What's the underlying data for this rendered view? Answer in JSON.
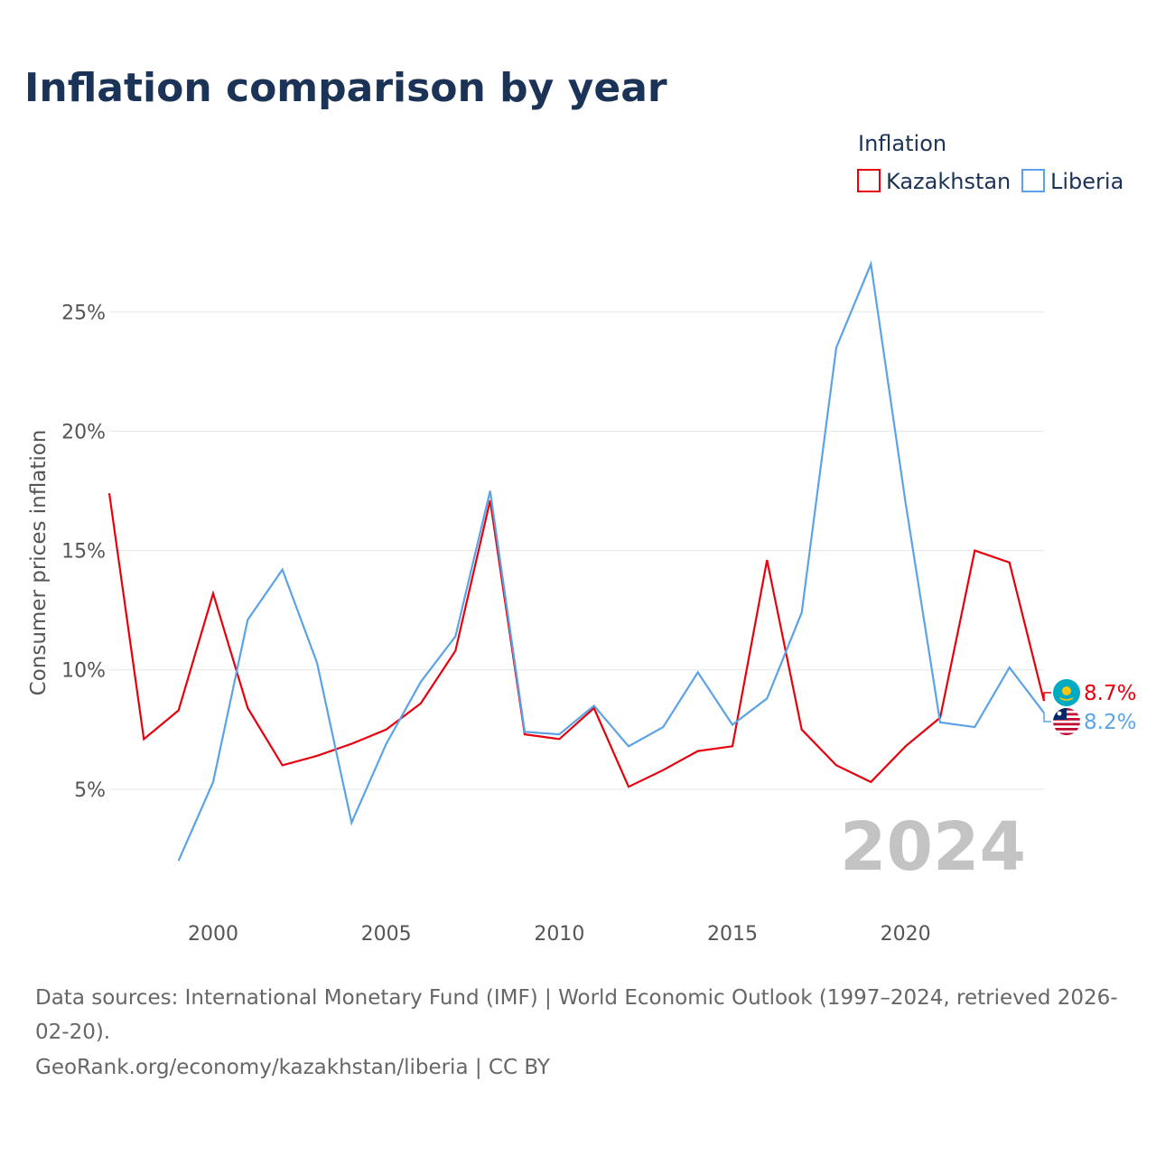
{
  "title": "Inflation comparison by year",
  "legend": {
    "title": "Inflation"
  },
  "year_label": "2024",
  "footer": {
    "sources": "Data sources: International Monetary Fund (IMF) | World Economic Outlook (1997–2024, retrieved 2026-02-20).",
    "credit": "GeoRank.org/economy/kazakhstan/liberia | CC BY"
  },
  "chart_data": {
    "type": "line",
    "title": "Inflation comparison by year",
    "ylabel": "Consumer prices inflation",
    "xlabel": "",
    "xlim": [
      1997,
      2024
    ],
    "ylim": [
      0,
      28
    ],
    "x_ticks": [
      2000,
      2005,
      2010,
      2015,
      2020
    ],
    "y_ticks": [
      5,
      10,
      15,
      20,
      25
    ],
    "y_tick_labels": [
      "5%",
      "10%",
      "15%",
      "20%",
      "25%"
    ],
    "grid": true,
    "legend_position": "top-right",
    "series": [
      {
        "name": "Kazakhstan",
        "color": "#e8000d",
        "icon": "kazakhstan-flag-icon",
        "end_label": "8.7%",
        "x": [
          1997,
          1998,
          1999,
          2000,
          2001,
          2002,
          2003,
          2004,
          2005,
          2006,
          2007,
          2008,
          2009,
          2010,
          2011,
          2012,
          2013,
          2014,
          2015,
          2016,
          2017,
          2018,
          2019,
          2020,
          2021,
          2022,
          2023,
          2024
        ],
        "values": [
          17.4,
          7.1,
          8.3,
          13.2,
          8.4,
          6.0,
          6.4,
          6.9,
          7.5,
          8.6,
          10.8,
          17.1,
          7.3,
          7.1,
          8.4,
          5.1,
          5.8,
          6.6,
          6.8,
          14.6,
          7.5,
          6.0,
          5.3,
          6.8,
          8.0,
          15.0,
          14.5,
          8.7
        ]
      },
      {
        "name": "Liberia",
        "color": "#5ba3e6",
        "icon": "liberia-flag-icon",
        "end_label": "8.2%",
        "x": [
          1999,
          2000,
          2001,
          2002,
          2003,
          2004,
          2005,
          2006,
          2007,
          2008,
          2009,
          2010,
          2011,
          2012,
          2013,
          2014,
          2015,
          2016,
          2017,
          2018,
          2019,
          2020,
          2021,
          2022,
          2023,
          2024
        ],
        "values": [
          2.0,
          5.3,
          12.1,
          14.2,
          10.3,
          3.6,
          6.9,
          9.5,
          11.4,
          17.5,
          7.4,
          7.3,
          8.5,
          6.8,
          7.6,
          9.9,
          7.7,
          8.8,
          12.4,
          23.5,
          27.0,
          17.0,
          7.8,
          7.6,
          10.1,
          8.2
        ]
      }
    ]
  }
}
